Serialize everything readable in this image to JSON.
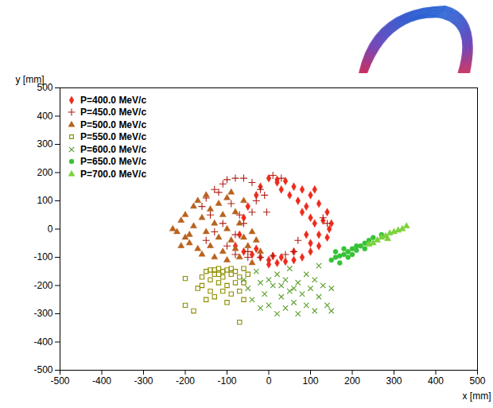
{
  "chart_data": {
    "type": "scatter",
    "xlabel": "x [mm]",
    "ylabel": "y [mm]",
    "xlim": [
      -500,
      500
    ],
    "ylim": [
      -500,
      500
    ],
    "xticks": [
      -500,
      -400,
      -300,
      -200,
      -100,
      0,
      100,
      200,
      300,
      400,
      500
    ],
    "yticks": [
      -500,
      -400,
      -300,
      -200,
      -100,
      0,
      100,
      200,
      300,
      400,
      500
    ],
    "grid": false,
    "legend": "top-left",
    "series": [
      {
        "name": "P=400.0 MeV/c",
        "color": "#ee2a1b",
        "marker": "diamond",
        "x": [
          0,
          20,
          40,
          60,
          80,
          100,
          120,
          140,
          150,
          145,
          140,
          120,
          100,
          80,
          60,
          40,
          20,
          0,
          0,
          -20,
          -40,
          -60,
          -80,
          -70,
          -60,
          -50,
          -30,
          -20,
          30,
          50,
          70,
          90,
          100,
          110,
          120,
          100,
          60,
          30,
          10,
          -30,
          80,
          130,
          90,
          20,
          110
        ],
        "y": [
          180,
          175,
          170,
          150,
          140,
          120,
          90,
          60,
          20,
          0,
          -30,
          -60,
          -80,
          -100,
          -110,
          -115,
          -120,
          -125,
          -110,
          -100,
          -90,
          -80,
          -60,
          -20,
          40,
          80,
          120,
          150,
          140,
          120,
          100,
          80,
          40,
          20,
          -20,
          -50,
          -80,
          -100,
          -95,
          -70,
          60,
          30,
          -20,
          165,
          140
        ]
      },
      {
        "name": "P=450.0 MeV/c",
        "color": "#b01e14",
        "marker": "plus",
        "x": [
          -150,
          -130,
          -110,
          -100,
          -80,
          -60,
          -40,
          -20,
          -30,
          -40,
          -60,
          -80,
          -100,
          -80,
          -50,
          -20,
          10,
          40,
          60,
          70,
          -120,
          -90,
          -70,
          -110,
          -130,
          -140,
          10,
          30,
          -10,
          -5,
          130,
          140,
          -160,
          -50,
          -150
        ],
        "y": [
          110,
          140,
          160,
          175,
          180,
          180,
          165,
          140,
          100,
          60,
          20,
          -20,
          -60,
          -90,
          -100,
          -100,
          -95,
          -90,
          -80,
          -40,
          130,
          90,
          50,
          20,
          -10,
          50,
          190,
          180,
          120,
          60,
          40,
          20,
          80,
          -80,
          -40
        ]
      },
      {
        "name": "P=500.0 MeV/c",
        "color": "#b8621e",
        "marker": "triangle",
        "x": [
          -230,
          -220,
          -210,
          -200,
          -200,
          -190,
          -180,
          -180,
          -170,
          -170,
          -160,
          -160,
          -150,
          -150,
          -140,
          -140,
          -130,
          -130,
          -120,
          -120,
          -110,
          -110,
          -100,
          -100,
          -90,
          -90,
          -80,
          -80,
          -70,
          -70,
          -60,
          -60,
          -50,
          -40,
          -40,
          -30,
          -20,
          -190,
          -210,
          -100
        ],
        "y": [
          0,
          -10,
          30,
          50,
          -30,
          -50,
          10,
          80,
          100,
          -70,
          -90,
          40,
          -10,
          120,
          70,
          -60,
          -100,
          20,
          -30,
          90,
          50,
          -80,
          0,
          -110,
          130,
          -40,
          60,
          -70,
          20,
          -100,
          -30,
          100,
          -60,
          -10,
          -120,
          -40,
          -80,
          -20,
          -60,
          110
        ]
      },
      {
        "name": "P=550.0 MeV/c",
        "color": "#8c8c00",
        "marker": "open_square",
        "x": [
          -200,
          -200,
          -180,
          -170,
          -160,
          -160,
          -150,
          -140,
          -140,
          -130,
          -130,
          -120,
          -120,
          -110,
          -110,
          -100,
          -100,
          -90,
          -90,
          -80,
          -80,
          -70,
          -70,
          -60,
          -60,
          -50,
          -70,
          -100,
          -150,
          -130,
          -90,
          -110,
          -140,
          -60,
          -120
        ],
        "y": [
          -175,
          -270,
          -290,
          -210,
          -170,
          -200,
          -150,
          -180,
          -220,
          -145,
          -160,
          -190,
          -140,
          -170,
          -150,
          -200,
          -145,
          -160,
          -230,
          -150,
          -190,
          -170,
          -220,
          -140,
          -250,
          -160,
          -330,
          -260,
          -250,
          -240,
          -140,
          -220,
          -145,
          -190,
          -160
        ]
      },
      {
        "name": "P=600.0 MeV/c",
        "color": "#5a9e2a",
        "marker": "x",
        "x": [
          -60,
          -50,
          -40,
          -30,
          -20,
          -10,
          0,
          10,
          20,
          20,
          30,
          40,
          40,
          50,
          50,
          60,
          70,
          70,
          80,
          90,
          90,
          100,
          110,
          110,
          120,
          130,
          140,
          150,
          150,
          0,
          60,
          30,
          120,
          -20
        ],
        "y": [
          -180,
          -210,
          -250,
          -150,
          -190,
          -230,
          -270,
          -200,
          -160,
          -300,
          -240,
          -180,
          -280,
          -140,
          -220,
          -260,
          -190,
          -300,
          -230,
          -160,
          -270,
          -210,
          -180,
          -290,
          -240,
          -200,
          -270,
          -290,
          -210,
          -180,
          -210,
          -200,
          -130,
          -280
        ]
      },
      {
        "name": "P=650.0 MeV/c",
        "color": "#36c236",
        "marker": "dot",
        "x": [
          150,
          160,
          170,
          180,
          190,
          200,
          210,
          220,
          230,
          240,
          250,
          170,
          190,
          210,
          200,
          160,
          270,
          230,
          180
        ],
        "y": [
          -110,
          -100,
          -95,
          -90,
          -80,
          -70,
          -75,
          -60,
          -50,
          -40,
          -30,
          -120,
          -100,
          -60,
          -90,
          -80,
          -20,
          -70,
          -70
        ]
      },
      {
        "name": "P=700.0 MeV/c",
        "color": "#7ad23a",
        "marker": "triangle",
        "x": [
          250,
          260,
          270,
          280,
          290,
          300,
          310,
          320,
          330,
          240,
          285
        ],
        "y": [
          -50,
          -40,
          -30,
          -25,
          -15,
          -10,
          -5,
          0,
          10,
          -55,
          -35
        ]
      }
    ]
  }
}
